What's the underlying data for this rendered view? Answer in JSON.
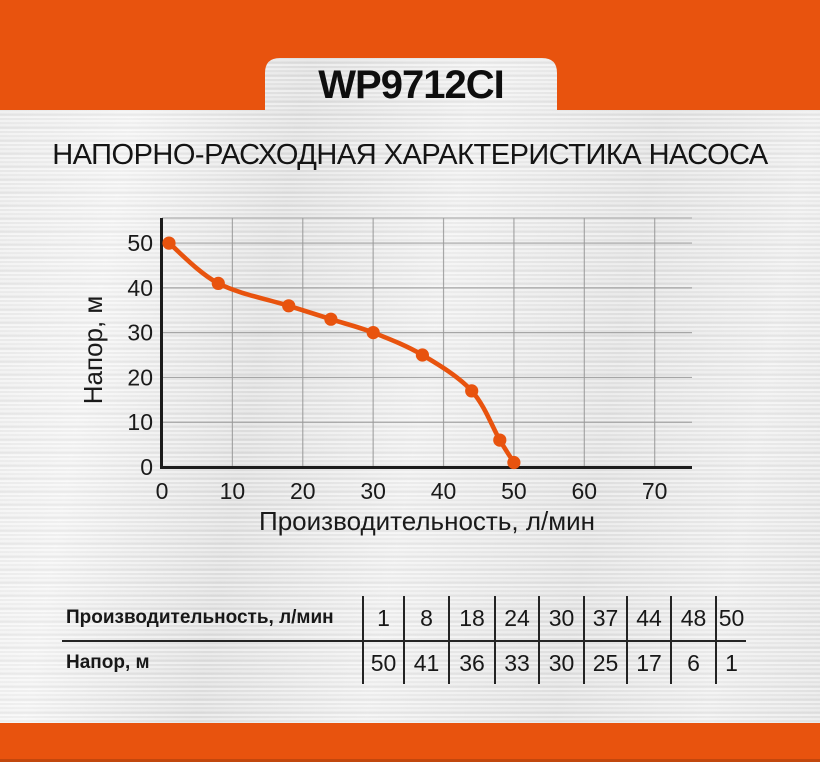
{
  "page": {
    "model_badge": "WP9712CI",
    "heading": "НАПОРНО-РАСХОДНАЯ ХАРАКТЕРИСТИКА НАСОСА",
    "accent_color": "#E8530E",
    "accent_dark_color": "#C2470D"
  },
  "chart_data": {
    "type": "line",
    "title": "",
    "xlabel": "Производительность, л/мин",
    "ylabel": "Напор, м",
    "series": [
      {
        "name": "Напорно-расходная характеристика насоса",
        "x": [
          1,
          8,
          18,
          24,
          30,
          37,
          44,
          48,
          50
        ],
        "y": [
          50,
          41,
          36,
          33,
          30,
          25,
          17,
          6,
          1
        ]
      }
    ],
    "xticks": [
      0,
      10,
      20,
      30,
      40,
      50,
      60,
      70
    ],
    "yticks": [
      0,
      10,
      20,
      30,
      40,
      50
    ],
    "xlim": [
      0,
      75.3
    ],
    "ylim": [
      0,
      55.6
    ],
    "grid": true,
    "legend": "none",
    "line_color": "#E8530E",
    "marker": "circle",
    "grid_color": "#9a9a9a",
    "axis_color": "#1c1c1c"
  },
  "table": {
    "rows": [
      {
        "label": "Производительность, л/мин",
        "values": [
          "1",
          "8",
          "18",
          "24",
          "30",
          "37",
          "44",
          "48",
          "50"
        ]
      },
      {
        "label": "Напор, м",
        "values": [
          "50",
          "41",
          "36",
          "33",
          "30",
          "25",
          "17",
          "6",
          "1"
        ]
      }
    ]
  }
}
